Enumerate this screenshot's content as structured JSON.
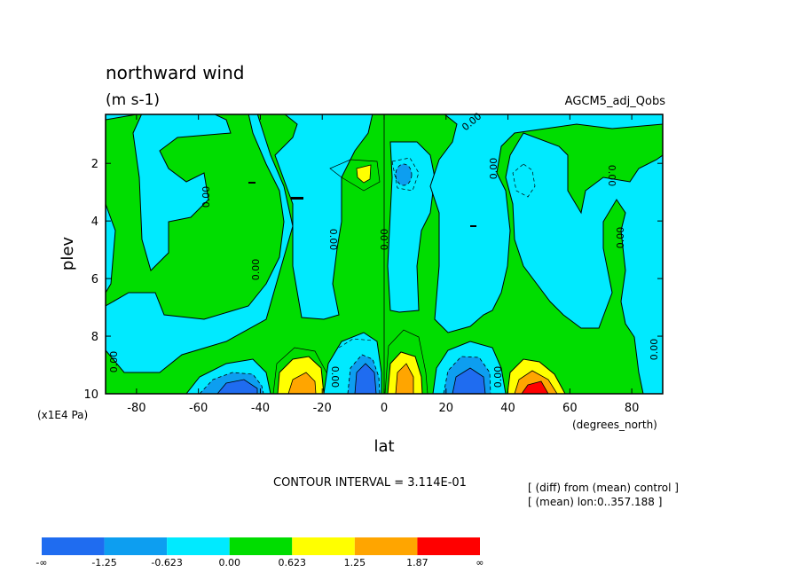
{
  "chart_data": {
    "type": "heatmap",
    "title": "northward wind",
    "units": "(m s-1)",
    "experiment": "AGCM5_adj_Qobs",
    "xlabel": "lat",
    "ylabel": "plev",
    "x_unit": "(degrees_north)",
    "y_unit": "(x1E4 Pa)",
    "xlim": [
      -90,
      90
    ],
    "ylim": [
      10,
      0.3
    ],
    "x_ticks": [
      "-80",
      "-60",
      "-40",
      "-20",
      "0",
      "20",
      "40",
      "60",
      "80"
    ],
    "y_ticks": [
      "2",
      "4",
      "6",
      "8",
      "10"
    ],
    "contour_interval": "CONTOUR INTERVAL = 3.114E-01",
    "notes": [
      "[ (diff) from (mean) control ]",
      "[ (mean) lon:0..357.188 ]"
    ],
    "contour_label": "0.00",
    "colorbar": {
      "labels": [
        "-∞",
        "-1.25",
        "-0.623",
        "0.00",
        "0.623",
        "1.25",
        "1.87",
        "∞"
      ],
      "colors": [
        "#1f6cf0",
        "#0d9ef0",
        "#00eaff",
        "#00dd00",
        "#ffff00",
        "#ffa500",
        "#ff0000"
      ]
    }
  }
}
